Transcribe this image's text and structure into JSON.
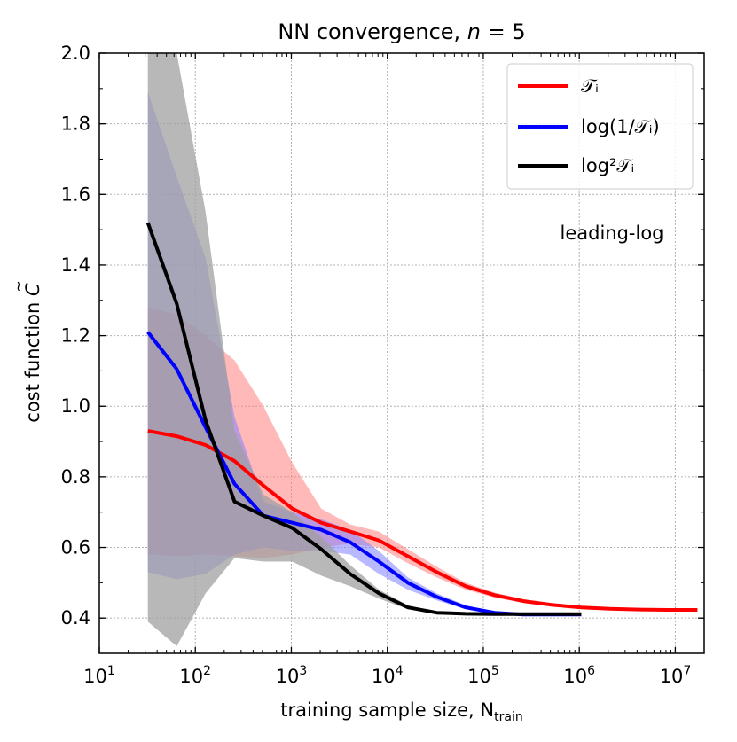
{
  "chart_data": {
    "type": "line",
    "title": "NN convergence, n = 5",
    "xlabel": "training sample size, N",
    "xlabel_sub": "train",
    "ylabel": "cost function C",
    "x_scale": "log",
    "xlim": [
      10,
      20000000
    ],
    "ylim": [
      0.3,
      2.0
    ],
    "x_ticks": [
      {
        "value": 10,
        "base": "10",
        "exp": "1"
      },
      {
        "value": 100,
        "base": "10",
        "exp": "2"
      },
      {
        "value": 1000,
        "base": "10",
        "exp": "3"
      },
      {
        "value": 10000,
        "base": "10",
        "exp": "4"
      },
      {
        "value": 100000,
        "base": "10",
        "exp": "5"
      },
      {
        "value": 1000000,
        "base": "10",
        "exp": "6"
      },
      {
        "value": 10000000,
        "base": "10",
        "exp": "7"
      }
    ],
    "y_ticks": [
      "0.4",
      "0.6",
      "0.8",
      "1.0",
      "1.2",
      "1.4",
      "1.6",
      "1.8",
      "2.0"
    ],
    "grid": true,
    "legend_position": "top-right",
    "annotation": "leading-log",
    "series": [
      {
        "name": "𝒯ᵢ",
        "color": "#ff0000",
        "band_color": "#ff8080",
        "x": [
          32,
          64,
          128,
          256,
          512,
          1024,
          2048,
          4096,
          8192,
          16384,
          32768,
          65536,
          131072,
          262144,
          524288,
          1048576,
          2097152,
          4194304,
          8388608,
          17000000
        ],
        "y": [
          0.93,
          0.915,
          0.89,
          0.845,
          0.775,
          0.71,
          0.67,
          0.645,
          0.62,
          0.575,
          0.53,
          0.49,
          0.465,
          0.448,
          0.437,
          0.43,
          0.426,
          0.424,
          0.423,
          0.423
        ],
        "upper": [
          1.28,
          1.26,
          1.2,
          1.13,
          1.0,
          0.84,
          0.71,
          0.665,
          0.645,
          0.595,
          0.545,
          0.5,
          0.472,
          0.454,
          0.442,
          0.434,
          0.429,
          0.426,
          0.425,
          0.425
        ],
        "lower": [
          0.58,
          0.575,
          0.58,
          0.575,
          0.57,
          0.58,
          0.6,
          0.61,
          0.6,
          0.555,
          0.515,
          0.48,
          0.458,
          0.443,
          0.433,
          0.427,
          0.423,
          0.421,
          0.421,
          0.421
        ]
      },
      {
        "name": "log(1/𝒯ᵢ)",
        "color": "#0000ff",
        "band_color": "#7f7fff",
        "x": [
          32,
          64,
          128,
          256,
          512,
          1024,
          2048,
          4096,
          8192,
          16384,
          32768,
          65536,
          131072,
          262144,
          524288,
          1048576
        ],
        "y": [
          1.21,
          1.105,
          0.94,
          0.78,
          0.69,
          0.67,
          0.65,
          0.615,
          0.56,
          0.5,
          0.46,
          0.43,
          0.415,
          0.41,
          0.41,
          0.41
        ],
        "upper": [
          1.89,
          1.65,
          1.42,
          0.97,
          0.73,
          0.7,
          0.68,
          0.65,
          0.59,
          0.515,
          0.47,
          0.436,
          0.418,
          0.412,
          0.412,
          0.412
        ],
        "lower": [
          0.53,
          0.51,
          0.525,
          0.58,
          0.6,
          0.59,
          0.59,
          0.58,
          0.525,
          0.48,
          0.45,
          0.425,
          0.412,
          0.408,
          0.408,
          0.408
        ]
      },
      {
        "name": "log²𝒯ᵢ",
        "color": "#000000",
        "band_color": "#a0a0a0",
        "x": [
          32,
          64,
          128,
          256,
          512,
          1024,
          2048,
          4096,
          8192,
          16384,
          32768,
          65536,
          131072,
          262144,
          524288,
          1048576
        ],
        "y": [
          1.52,
          1.29,
          0.96,
          0.73,
          0.69,
          0.655,
          0.595,
          0.525,
          0.47,
          0.43,
          0.415,
          0.412,
          0.411,
          0.411,
          0.411,
          0.411
        ],
        "upper": [
          2.0,
          2.0,
          1.55,
          0.93,
          0.75,
          0.7,
          0.63,
          0.55,
          0.48,
          0.436,
          0.418,
          0.414,
          0.413,
          0.413,
          0.413,
          0.413
        ],
        "lower": [
          0.39,
          0.32,
          0.47,
          0.57,
          0.56,
          0.56,
          0.52,
          0.49,
          0.455,
          0.425,
          0.412,
          0.41,
          0.409,
          0.409,
          0.409,
          0.409
        ]
      }
    ]
  }
}
